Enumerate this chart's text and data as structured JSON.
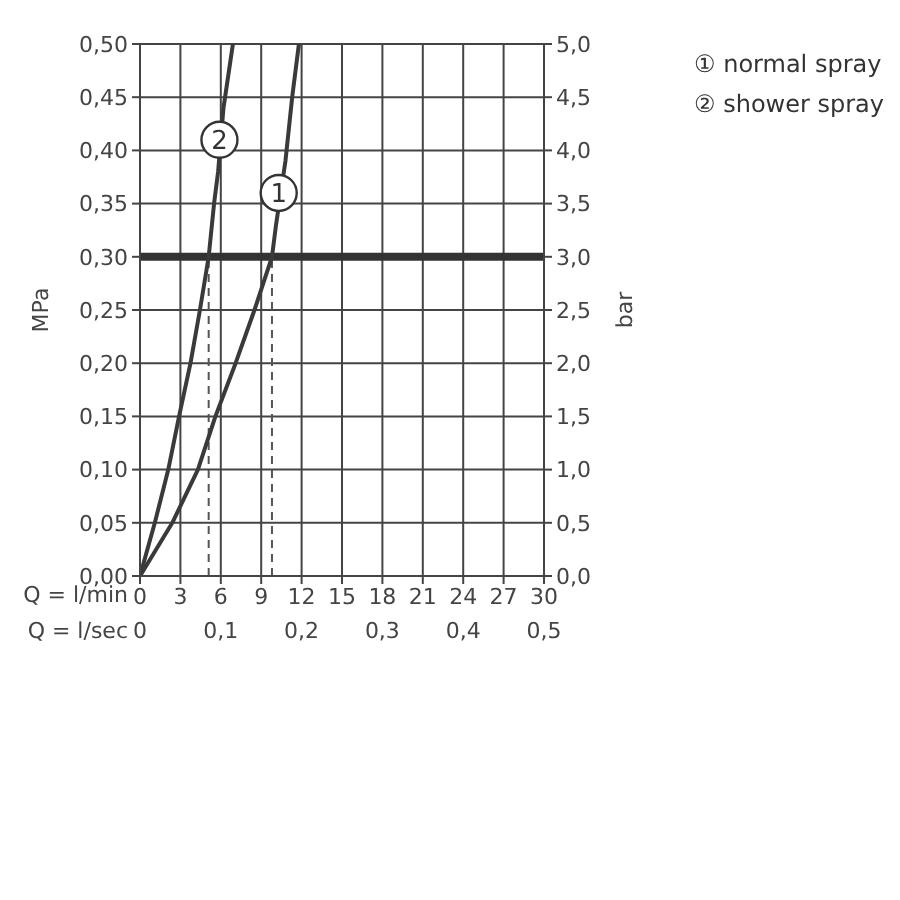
{
  "chart_data": {
    "type": "line",
    "xlabel": "Q = l/min",
    "x2label": "Q = l/sec",
    "ylabel": "MPa",
    "y2label": "bar",
    "xlim": [
      0,
      30
    ],
    "xticks": [
      0,
      3,
      6,
      9,
      12,
      15,
      18,
      21,
      24,
      27,
      30
    ],
    "x2lim": [
      0,
      0.5
    ],
    "x2ticks": [
      {
        "value": 0,
        "label": "0"
      },
      {
        "value": 0.1,
        "label": "0,1"
      },
      {
        "value": 0.2,
        "label": "0,2"
      },
      {
        "value": 0.3,
        "label": "0,3"
      },
      {
        "value": 0.4,
        "label": "0,4"
      },
      {
        "value": 0.5,
        "label": "0,5"
      }
    ],
    "ylim": [
      0,
      0.5
    ],
    "yticks": [
      {
        "value": 0,
        "label": "0,00"
      },
      {
        "value": 0.05,
        "label": "0,05"
      },
      {
        "value": 0.1,
        "label": "0,10"
      },
      {
        "value": 0.15,
        "label": "0,15"
      },
      {
        "value": 0.2,
        "label": "0,20"
      },
      {
        "value": 0.25,
        "label": "0,25"
      },
      {
        "value": 0.3,
        "label": "0,30"
      },
      {
        "value": 0.35,
        "label": "0,35"
      },
      {
        "value": 0.4,
        "label": "0,40"
      },
      {
        "value": 0.45,
        "label": "0,45"
      },
      {
        "value": 0.5,
        "label": "0,50"
      }
    ],
    "y2lim": [
      0,
      5
    ],
    "y2ticks": [
      {
        "value": 0,
        "label": "0,0"
      },
      {
        "value": 0.5,
        "label": "0,5"
      },
      {
        "value": 1,
        "label": "1,0"
      },
      {
        "value": 1.5,
        "label": "1,5"
      },
      {
        "value": 2,
        "label": "2,0"
      },
      {
        "value": 2.5,
        "label": "2,5"
      },
      {
        "value": 3,
        "label": "3,0"
      },
      {
        "value": 3.5,
        "label": "3,5"
      },
      {
        "value": 4,
        "label": "4,0"
      },
      {
        "value": 4.5,
        "label": "4,5"
      },
      {
        "value": 5,
        "label": "5,0"
      }
    ],
    "grid": true,
    "legend": "top right",
    "marker": "none",
    "line_style": "solid",
    "series": [
      {
        "name": "① normal spray",
        "color": "#3a3a3a",
        "x": [
          0,
          2.4,
          4.3,
          5.6,
          7.1,
          8.5,
          9.8,
          10.1,
          10.8,
          11.3,
          11.8
        ],
        "values": [
          0,
          0.05,
          0.1,
          0.15,
          0.2,
          0.25,
          0.3,
          0.33,
          0.39,
          0.45,
          0.5
        ]
      },
      {
        "name": "② shower spray",
        "color": "#3a3a3a",
        "x": [
          0,
          1.1,
          2.1,
          2.9,
          3.75,
          4.45,
          5.1,
          5.5,
          5.8,
          6.2,
          6.9
        ],
        "values": [
          0,
          0.05,
          0.1,
          0.15,
          0.2,
          0.25,
          0.3,
          0.35,
          0.38,
          0.44,
          0.5
        ]
      }
    ],
    "ref_lines": [
      {
        "axis": "y",
        "value": 0.3,
        "color": "#333333",
        "line_style": "solid"
      },
      {
        "axis": "x",
        "value": 5.1,
        "color": "#555555",
        "line_style": "dashed"
      },
      {
        "axis": "x",
        "value": 9.8,
        "color": "#555555",
        "line_style": "dashed"
      }
    ],
    "annotations": [
      {
        "text": "1",
        "x": 10.3,
        "y": 0.36
      },
      {
        "text": "2",
        "x": 5.9,
        "y": 0.41
      }
    ]
  }
}
